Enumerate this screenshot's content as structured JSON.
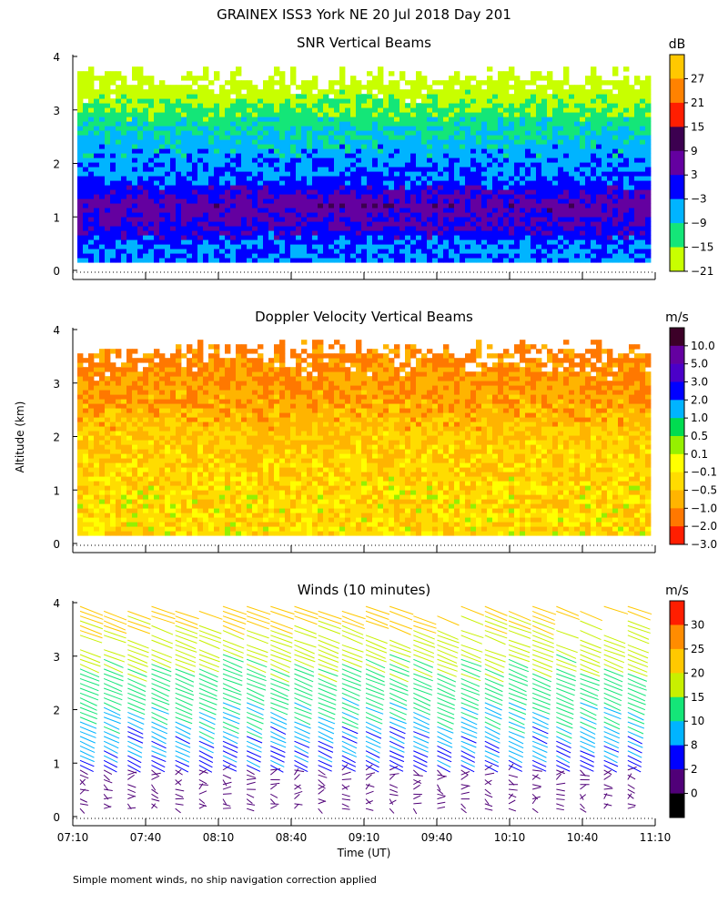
{
  "figure": {
    "title": "GRAINEX ISS3 York NE  20 Jul 2018 Day 201",
    "ylabel": "Altitude (km)",
    "xlabel": "Time (UT)",
    "footnote": "Simple moment winds, no ship navigation correction applied",
    "x_ticks": [
      "07:10",
      "07:40",
      "08:10",
      "08:40",
      "09:10",
      "09:40",
      "10:10",
      "10:40",
      "11:10"
    ],
    "y_ticks": [
      "0",
      "1",
      "2",
      "3",
      "4"
    ]
  },
  "chart_data": [
    {
      "type": "heatmap",
      "title": "SNR Vertical Beams",
      "units": "dB",
      "ylim": [
        0,
        4
      ],
      "colorbar_ticks": [
        "27",
        "21",
        "15",
        "9",
        "3",
        "−3",
        "−9",
        "−15",
        "−21"
      ],
      "colorbar_colors": [
        "#ffc800",
        "#ff8200",
        "#ff1e00",
        "#3c0050",
        "#6400a0",
        "#0000ff",
        "#00b4ff",
        "#14e678",
        "#c8ff00"
      ],
      "data_top_km": 3.7,
      "profile": [
        {
          "alt_km": 0.4,
          "snr_db": -3
        },
        {
          "alt_km": 0.8,
          "snr_db": 3
        },
        {
          "alt_km": 1.2,
          "snr_db": 6
        },
        {
          "alt_km": 1.7,
          "snr_db": -3
        },
        {
          "alt_km": 2.2,
          "snr_db": -6
        },
        {
          "alt_km": 2.6,
          "snr_db": -9
        },
        {
          "alt_km": 3.0,
          "snr_db": -15
        },
        {
          "alt_km": 3.5,
          "snr_db": -21
        }
      ]
    },
    {
      "type": "heatmap",
      "title": "Doppler Velocity Vertical Beams",
      "units": "m/s",
      "ylim": [
        0,
        4
      ],
      "colorbar_ticks": [
        "10.0",
        "5.0",
        "3.0",
        "2.0",
        "1.0",
        "0.5",
        "0.1",
        "−0.1",
        "−0.5",
        "−1.0",
        "−2.0",
        "−3.0"
      ],
      "colorbar_colors": [
        "#3c0028",
        "#6400a0",
        "#4b00c8",
        "#0000ff",
        "#00b4ff",
        "#00dc50",
        "#96f000",
        "#ffff00",
        "#ffdc00",
        "#ffb400",
        "#ff7800",
        "#ff1e00"
      ],
      "data_top_km": 3.7,
      "profile": [
        {
          "alt_km": 0.5,
          "w_ms": -0.3
        },
        {
          "alt_km": 1.0,
          "w_ms": -0.3
        },
        {
          "alt_km": 1.5,
          "w_ms": -0.4
        },
        {
          "alt_km": 2.0,
          "w_ms": -0.5
        },
        {
          "alt_km": 2.5,
          "w_ms": -0.8
        },
        {
          "alt_km": 3.0,
          "w_ms": -1.0
        },
        {
          "alt_km": 3.5,
          "w_ms": -1.2
        }
      ]
    },
    {
      "type": "scatter",
      "title": "Winds (10 minutes)",
      "units": "m/s",
      "ylim": [
        0,
        4
      ],
      "colorbar_ticks": [
        "30",
        "25",
        "20",
        "15",
        "10",
        "8",
        "2",
        "0"
      ],
      "colorbar_colors": [
        "#ff1e00",
        "#ff8c00",
        "#ffc800",
        "#c8f000",
        "#14e678",
        "#00b4ff",
        "#0000ff",
        "#500078",
        "#000000"
      ],
      "profile_times": [
        "07:10",
        "07:20",
        "07:30",
        "07:40",
        "07:50",
        "08:00",
        "08:10",
        "08:20",
        "08:30",
        "08:40",
        "08:50",
        "09:00",
        "09:10",
        "09:20",
        "09:30",
        "09:40",
        "09:50",
        "10:00",
        "10:10",
        "10:20",
        "10:30",
        "10:40",
        "10:50",
        "11:00"
      ],
      "profile": [
        {
          "alt_km": 0.4,
          "speed_ms": 3
        },
        {
          "alt_km": 0.8,
          "speed_ms": 5
        },
        {
          "alt_km": 1.2,
          "speed_ms": 8
        },
        {
          "alt_km": 1.6,
          "speed_ms": 9
        },
        {
          "alt_km": 2.0,
          "speed_ms": 10
        },
        {
          "alt_km": 2.5,
          "speed_ms": 13
        },
        {
          "alt_km": 3.0,
          "speed_ms": 16
        },
        {
          "alt_km": 3.5,
          "speed_ms": 19
        },
        {
          "alt_km": 3.9,
          "speed_ms": 22
        }
      ]
    }
  ]
}
